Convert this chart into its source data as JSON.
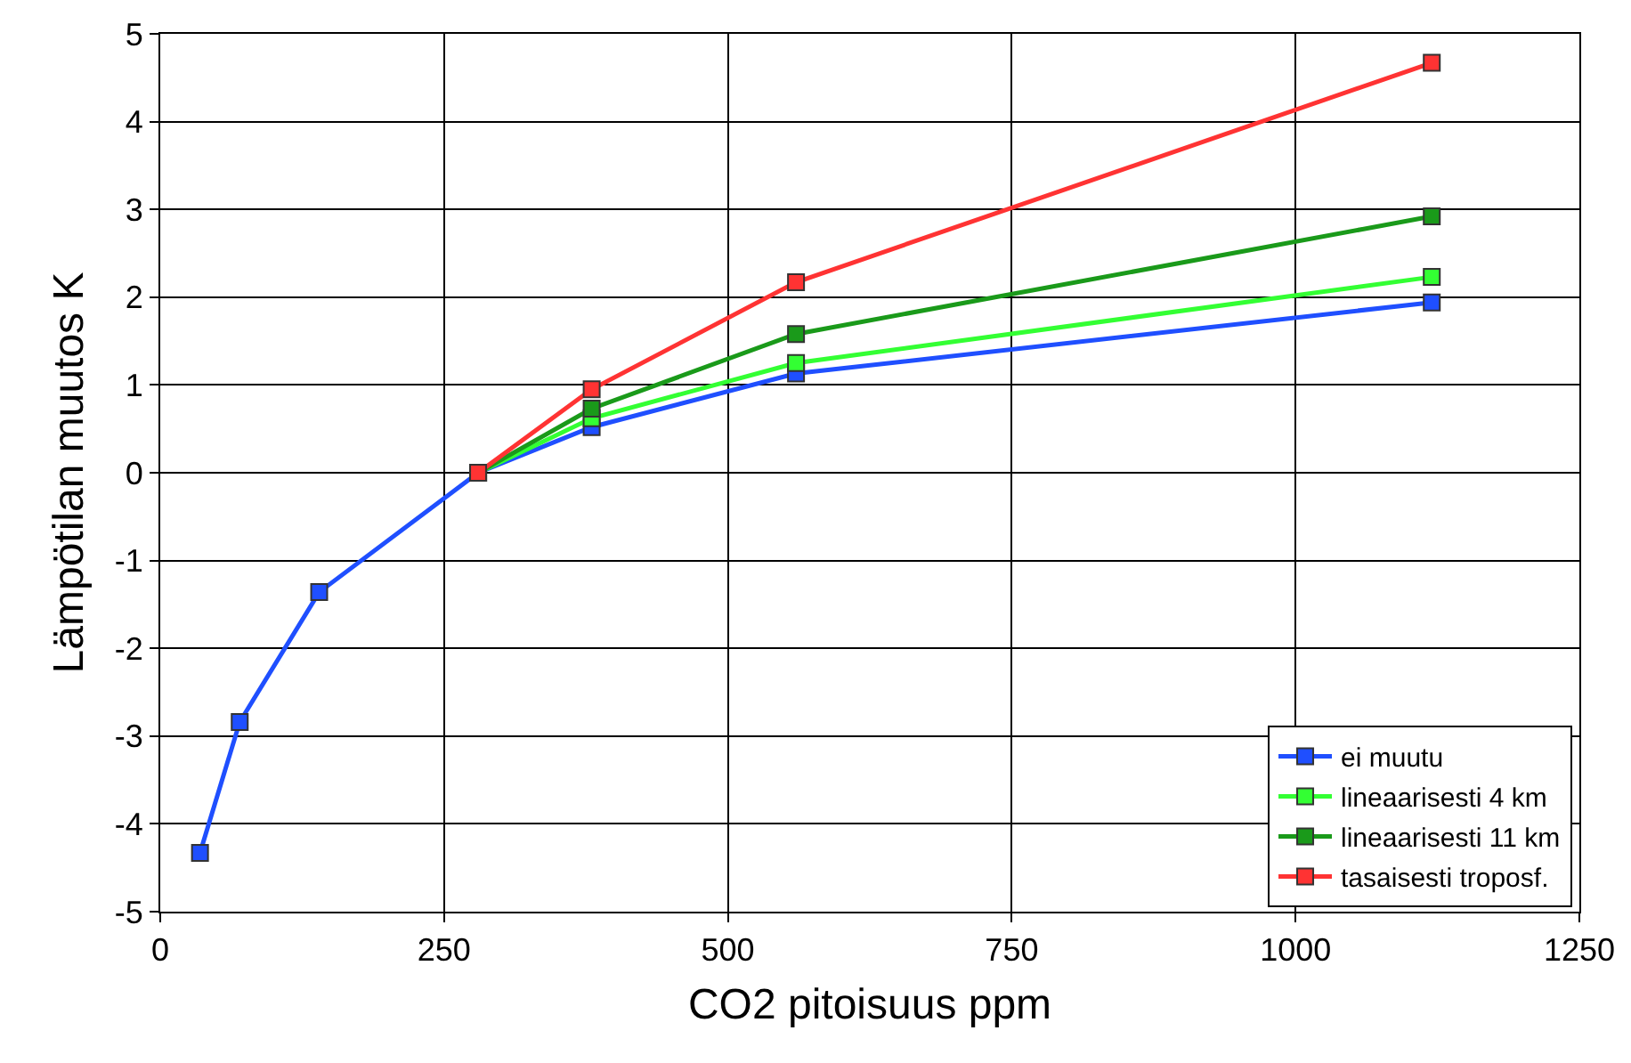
{
  "chart_data": {
    "type": "line",
    "xlabel": "CO2 pitoisuus ppm",
    "ylabel": "Lämpötilan muutos K",
    "xlim": [
      0,
      1250
    ],
    "xticks": [
      0,
      250,
      500,
      750,
      1000,
      1250
    ],
    "ylim": [
      -5,
      5
    ],
    "yticks": [
      -5,
      -4,
      -3,
      -2,
      -1,
      0,
      1,
      2,
      3,
      4,
      5
    ],
    "grid": true,
    "legend": "bottom right",
    "marker": "square",
    "line_style": "solid",
    "series": [
      {
        "name": "ei muutu",
        "color": "#1f4fff",
        "x": [
          35,
          70,
          140,
          280,
          380,
          560,
          1120
        ],
        "values": [
          -4.33,
          -2.84,
          -1.36,
          0,
          0.52,
          1.13,
          1.94
        ]
      },
      {
        "name": "lineaarisesti 4 km",
        "color": "#33ff33",
        "x": [
          280,
          380,
          560,
          1120
        ],
        "values": [
          0,
          0.62,
          1.25,
          2.23
        ]
      },
      {
        "name": "lineaarisesti 11 km",
        "color": "#1a9a1a",
        "x": [
          280,
          380,
          560,
          1120
        ],
        "values": [
          0,
          0.73,
          1.58,
          2.92
        ]
      },
      {
        "name": "tasaisesti troposf.",
        "color": "#ff3333",
        "x": [
          280,
          380,
          560,
          1120
        ],
        "values": [
          0,
          0.95,
          2.17,
          4.67
        ]
      }
    ]
  }
}
